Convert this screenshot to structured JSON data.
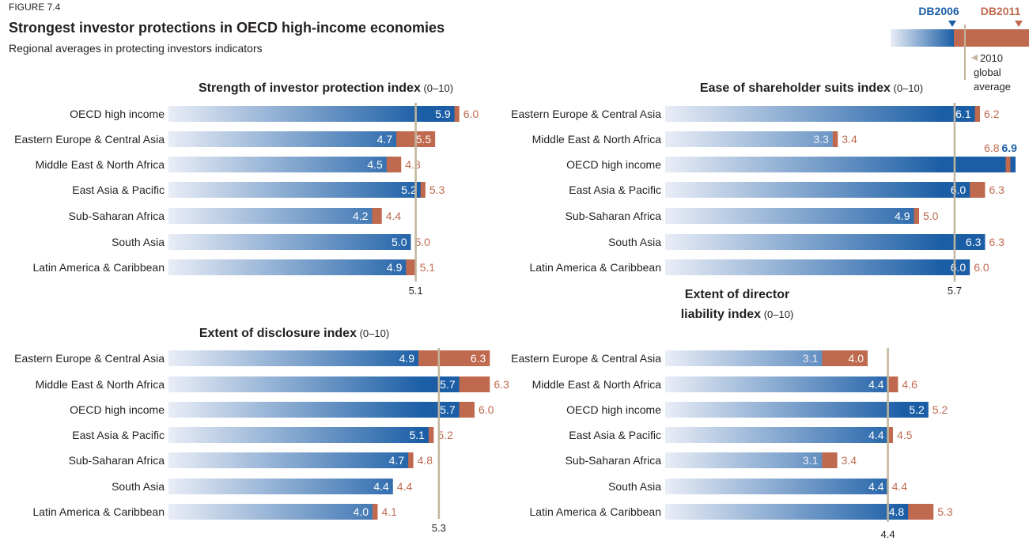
{
  "figure_label": "FIGURE 7.4",
  "title": "Strongest investor protections in OECD high-income economies",
  "subtitle": "Regional averages in protecting investors indicators",
  "colors": {
    "db2006": "#1b5ea6",
    "db2006_light": "#e9edf6",
    "db2011": "#bf6a4f",
    "avg_line": "#c2b59b",
    "text": "#231f20"
  },
  "legend": {
    "db2006_label": "DB2006",
    "db2011_label": "DB2011",
    "avg_label_lines": [
      "2010",
      "global",
      "average"
    ]
  },
  "chart_data": [
    {
      "type": "bar",
      "title": "Strength of investor protection index",
      "title_range": "(0–10)",
      "categories": [
        "OECD high income",
        "Eastern Europe & Central Asia",
        "Middle East & North Africa",
        "East Asia & Pacific",
        "Sub-Saharan Africa",
        "South Asia",
        "Latin America & Caribbean"
      ],
      "series": [
        {
          "name": "DB2006",
          "values": [
            5.9,
            4.7,
            4.5,
            5.2,
            4.2,
            5.0,
            4.9
          ]
        },
        {
          "name": "DB2011",
          "values": [
            6.0,
            5.5,
            4.8,
            5.3,
            4.4,
            5.0,
            5.1
          ]
        }
      ],
      "global_average": 5.1,
      "xlim": [
        0,
        10
      ]
    },
    {
      "type": "bar",
      "title": "Ease of shareholder suits index",
      "title_range": "(0–10)",
      "categories": [
        "Eastern Europe & Central Asia",
        "Middle East & North Africa",
        "OECD high income",
        "East Asia & Pacific",
        "Sub-Saharan Africa",
        "South Asia",
        "Latin America & Caribbean"
      ],
      "series": [
        {
          "name": "DB2006",
          "values": [
            6.1,
            3.3,
            6.9,
            6.0,
            4.9,
            6.3,
            6.0
          ]
        },
        {
          "name": "DB2011",
          "values": [
            6.2,
            3.4,
            6.8,
            6.3,
            5.0,
            6.3,
            6.0
          ]
        }
      ],
      "global_average": 5.7,
      "xlim": [
        0,
        10
      ]
    },
    {
      "type": "bar",
      "title": "Extent of disclosure index",
      "title_range": "(0–10)",
      "categories": [
        "Eastern Europe & Central Asia",
        "Middle East & North Africa",
        "OECD high income",
        "East Asia & Pacific",
        "Sub-Saharan Africa",
        "South Asia",
        "Latin America & Caribbean"
      ],
      "series": [
        {
          "name": "DB2006",
          "values": [
            4.9,
            5.7,
            5.7,
            5.1,
            4.7,
            4.4,
            4.0
          ]
        },
        {
          "name": "DB2011",
          "values": [
            6.3,
            6.3,
            6.0,
            5.2,
            4.8,
            4.4,
            4.1
          ]
        }
      ],
      "global_average": 5.3,
      "xlim": [
        0,
        10
      ]
    },
    {
      "type": "bar",
      "title_lines": [
        "Extent of director",
        "liability index"
      ],
      "title_range": "(0–10)",
      "categories": [
        "Eastern Europe & Central Asia",
        "Middle East & North Africa",
        "OECD high income",
        "East Asia & Pacific",
        "Sub-Saharan Africa",
        "South Asia",
        "Latin America & Caribbean"
      ],
      "series": [
        {
          "name": "DB2006",
          "values": [
            3.1,
            4.4,
            5.2,
            4.4,
            3.1,
            4.4,
            4.8
          ]
        },
        {
          "name": "DB2011",
          "values": [
            4.0,
            4.6,
            5.2,
            4.5,
            3.4,
            4.4,
            5.3
          ]
        }
      ],
      "global_average": 4.4,
      "xlim": [
        0,
        10
      ]
    }
  ]
}
